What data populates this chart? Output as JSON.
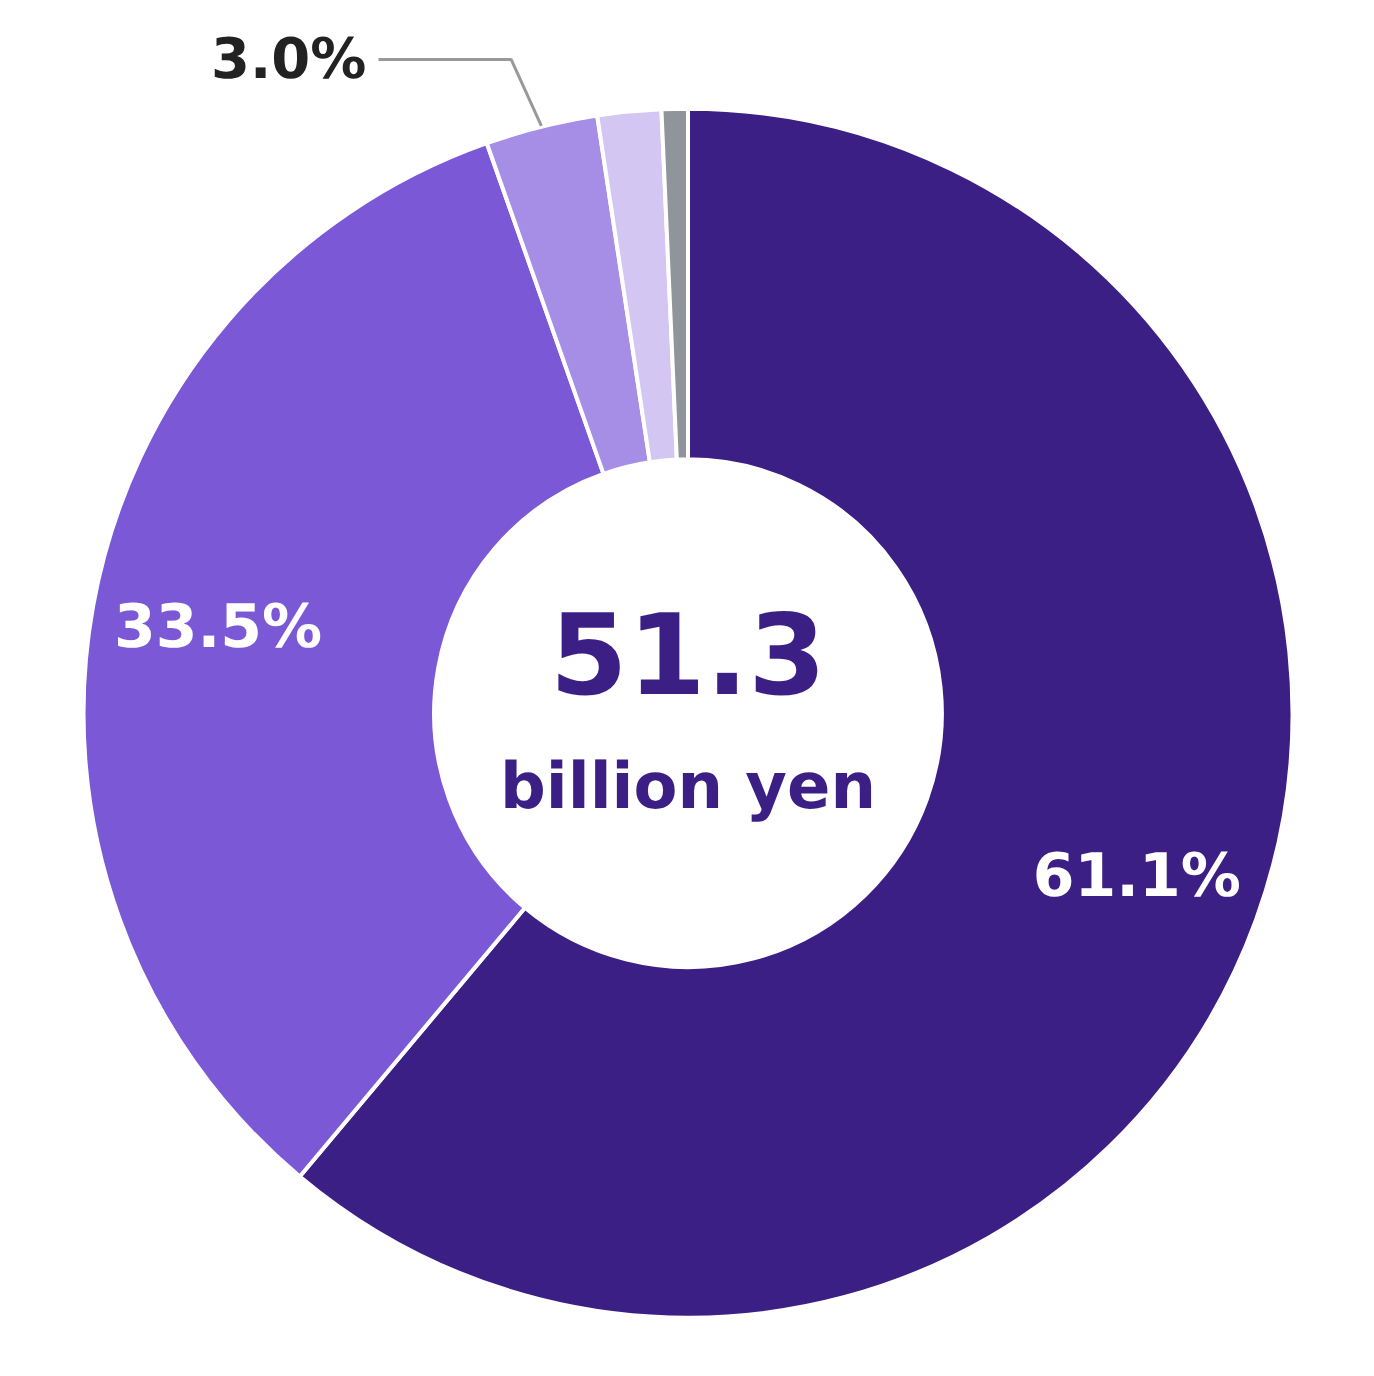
{
  "chart_data": {
    "type": "donut",
    "categories": [
      null,
      null,
      null,
      null,
      null
    ],
    "values": [
      61.1,
      33.5,
      3.0,
      1.7,
      0.7
    ],
    "colors": [
      "#3b1f85",
      "#7b58d6",
      "#a68de6",
      "#d4c6f2",
      "#8f959a"
    ],
    "value_labels": [
      "61.1%",
      "33.5%",
      "3.0%",
      null,
      null
    ],
    "annotations": [
      "51.3",
      "billion yen"
    ]
  }
}
